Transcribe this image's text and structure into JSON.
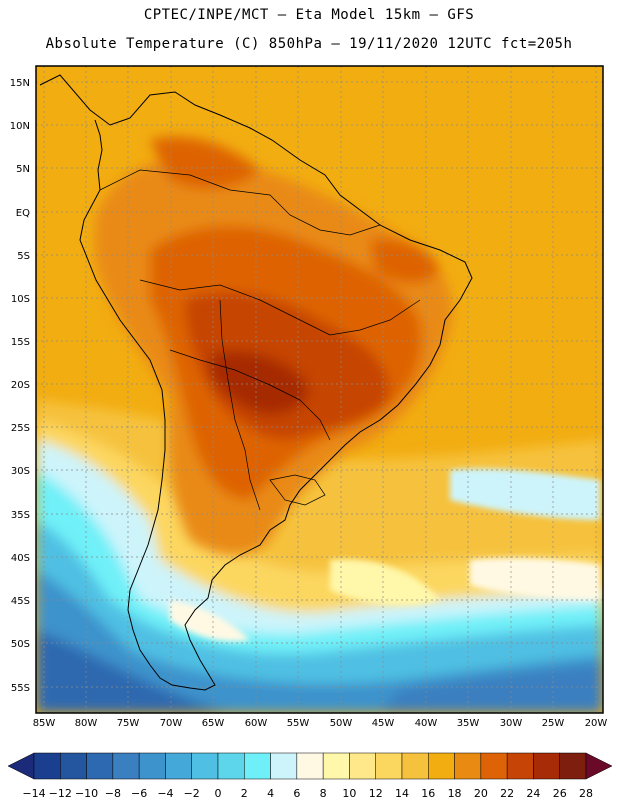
{
  "header": {
    "line1": "CPTEC/INPE/MCT –  Eta Model 15km – GFS",
    "line2": "Absolute Temperature (C) 850hPa – 19/11/2020 12UTC fct=205h"
  },
  "map": {
    "lat_labels": [
      "15N",
      "10N",
      "5N",
      "EQ",
      "5S",
      "10S",
      "15S",
      "20S",
      "25S",
      "30S",
      "35S",
      "40S",
      "45S",
      "50S",
      "55S"
    ],
    "lon_labels": [
      "85W",
      "80W",
      "75W",
      "70W",
      "65W",
      "60W",
      "55W",
      "50W",
      "45W",
      "40W",
      "35W",
      "30W",
      "25W",
      "20W"
    ]
  },
  "colorbar": {
    "labels": [
      "-14",
      "-12",
      "-10",
      "-8",
      "-6",
      "-4",
      "-2",
      "0",
      "2",
      "4",
      "6",
      "8",
      "10",
      "12",
      "14",
      "16",
      "18",
      "20",
      "22",
      "24",
      "26",
      "28"
    ],
    "colors": [
      "#1b3f8f",
      "#2456a0",
      "#2d69b0",
      "#3a7fc0",
      "#3d93cc",
      "#44a8d8",
      "#4fc0e3",
      "#5dd6ec",
      "#6ff0f8",
      "#cdf4fb",
      "#fff9e4",
      "#fff7a9",
      "#ffe889",
      "#fcd760",
      "#f6c23d",
      "#f2ad11",
      "#e98a13",
      "#de6306",
      "#c64405",
      "#a62b06",
      "#7e1e0e"
    ],
    "end_low": "#1b2a79",
    "end_high": "#6b0a28"
  }
}
